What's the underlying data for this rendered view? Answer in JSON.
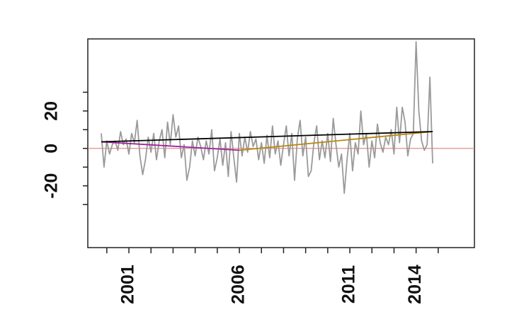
{
  "chart_data": {
    "type": "line",
    "x": [
      1999.75,
      1999.875,
      2000,
      2000.125,
      2000.25,
      2000.375,
      2000.5,
      2000.625,
      2000.75,
      2000.875,
      2001,
      2001.125,
      2001.25,
      2001.375,
      2001.5,
      2001.625,
      2001.75,
      2001.875,
      2002,
      2002.125,
      2002.25,
      2002.375,
      2002.5,
      2002.625,
      2002.75,
      2002.875,
      2003,
      2003.125,
      2003.25,
      2003.375,
      2003.5,
      2003.625,
      2003.75,
      2003.875,
      2004,
      2004.125,
      2004.25,
      2004.375,
      2004.5,
      2004.625,
      2004.75,
      2004.875,
      2005,
      2005.125,
      2005.25,
      2005.375,
      2005.5,
      2005.625,
      2005.75,
      2005.875,
      2006,
      2006.125,
      2006.25,
      2006.375,
      2006.5,
      2006.625,
      2006.75,
      2006.875,
      2007,
      2007.125,
      2007.25,
      2007.375,
      2007.5,
      2007.625,
      2007.75,
      2007.875,
      2008,
      2008.125,
      2008.25,
      2008.375,
      2008.5,
      2008.625,
      2008.75,
      2008.875,
      2009,
      2009.125,
      2009.25,
      2009.375,
      2009.5,
      2009.625,
      2009.75,
      2009.875,
      2010,
      2010.125,
      2010.25,
      2010.375,
      2010.5,
      2010.625,
      2010.75,
      2010.875,
      2011,
      2011.125,
      2011.25,
      2011.375,
      2011.5,
      2011.625,
      2011.75,
      2011.875,
      2012,
      2012.125,
      2012.25,
      2012.375,
      2012.5,
      2012.625,
      2012.75,
      2012.875,
      2013,
      2013.125,
      2013.25,
      2013.375,
      2013.5,
      2013.625,
      2013.75,
      2013.875,
      2014,
      2014.125,
      2014.25,
      2014.375,
      2014.5,
      2014.625,
      2014.75
    ],
    "series": [
      {
        "color": "#9a9a9a",
        "values": [
          8,
          -10,
          4,
          -3,
          2,
          4,
          -1,
          9,
          2,
          5,
          -3,
          8,
          3,
          15,
          -4,
          -14,
          -6,
          6,
          -2,
          8,
          -6,
          4,
          10,
          -5,
          14,
          2,
          18,
          6,
          12,
          -5,
          2,
          -17,
          -10,
          4,
          -4,
          6,
          1,
          -6,
          4,
          -3,
          10,
          -12,
          -5,
          5,
          -9,
          3,
          -15,
          9,
          -5,
          -18,
          8,
          -4,
          6,
          -2,
          9,
          1,
          5,
          -6,
          3,
          -8,
          7,
          -5,
          12,
          -3,
          4,
          -9,
          2,
          12,
          -4,
          8,
          -17,
          5,
          15,
          -4,
          6,
          -15,
          -12,
          3,
          12,
          -6,
          4,
          -5,
          8,
          -7,
          16,
          2,
          -10,
          -3,
          -24,
          -6,
          8,
          -12,
          3,
          -3,
          20,
          2,
          8,
          -10,
          4,
          -5,
          13,
          3,
          -2,
          6,
          2,
          10,
          -3,
          22,
          3,
          22,
          14,
          -4,
          5,
          8,
          57,
          20,
          4,
          -1,
          2,
          38,
          -8
        ]
      }
    ],
    "trend_lines": [
      {
        "color": "#a020a0",
        "x": [
          1999.75,
          2006
        ],
        "values": [
          3.5,
          -1
        ]
      },
      {
        "color": "#b8860b",
        "x": [
          2006,
          2014.75
        ],
        "values": [
          -1,
          9
        ]
      },
      {
        "color": "#000000",
        "x": [
          1999.75,
          2014.75
        ],
        "values": [
          3.5,
          9
        ]
      }
    ],
    "reference_line": {
      "value": 0,
      "color": "#e07070"
    },
    "xlim": [
      1999.14,
      2016.64
    ],
    "ylim": [
      -53,
      58.5
    ],
    "xticks": [
      2001,
      2006,
      2011,
      2014
    ],
    "xminor_ticks": [
      2000,
      2002,
      2003,
      2004,
      2005,
      2007,
      2008,
      2009,
      2010,
      2012,
      2013,
      2015
    ],
    "yticks": [
      -20,
      0,
      20
    ],
    "yminor_ticks": [
      -30,
      -10,
      10,
      30
    ]
  }
}
